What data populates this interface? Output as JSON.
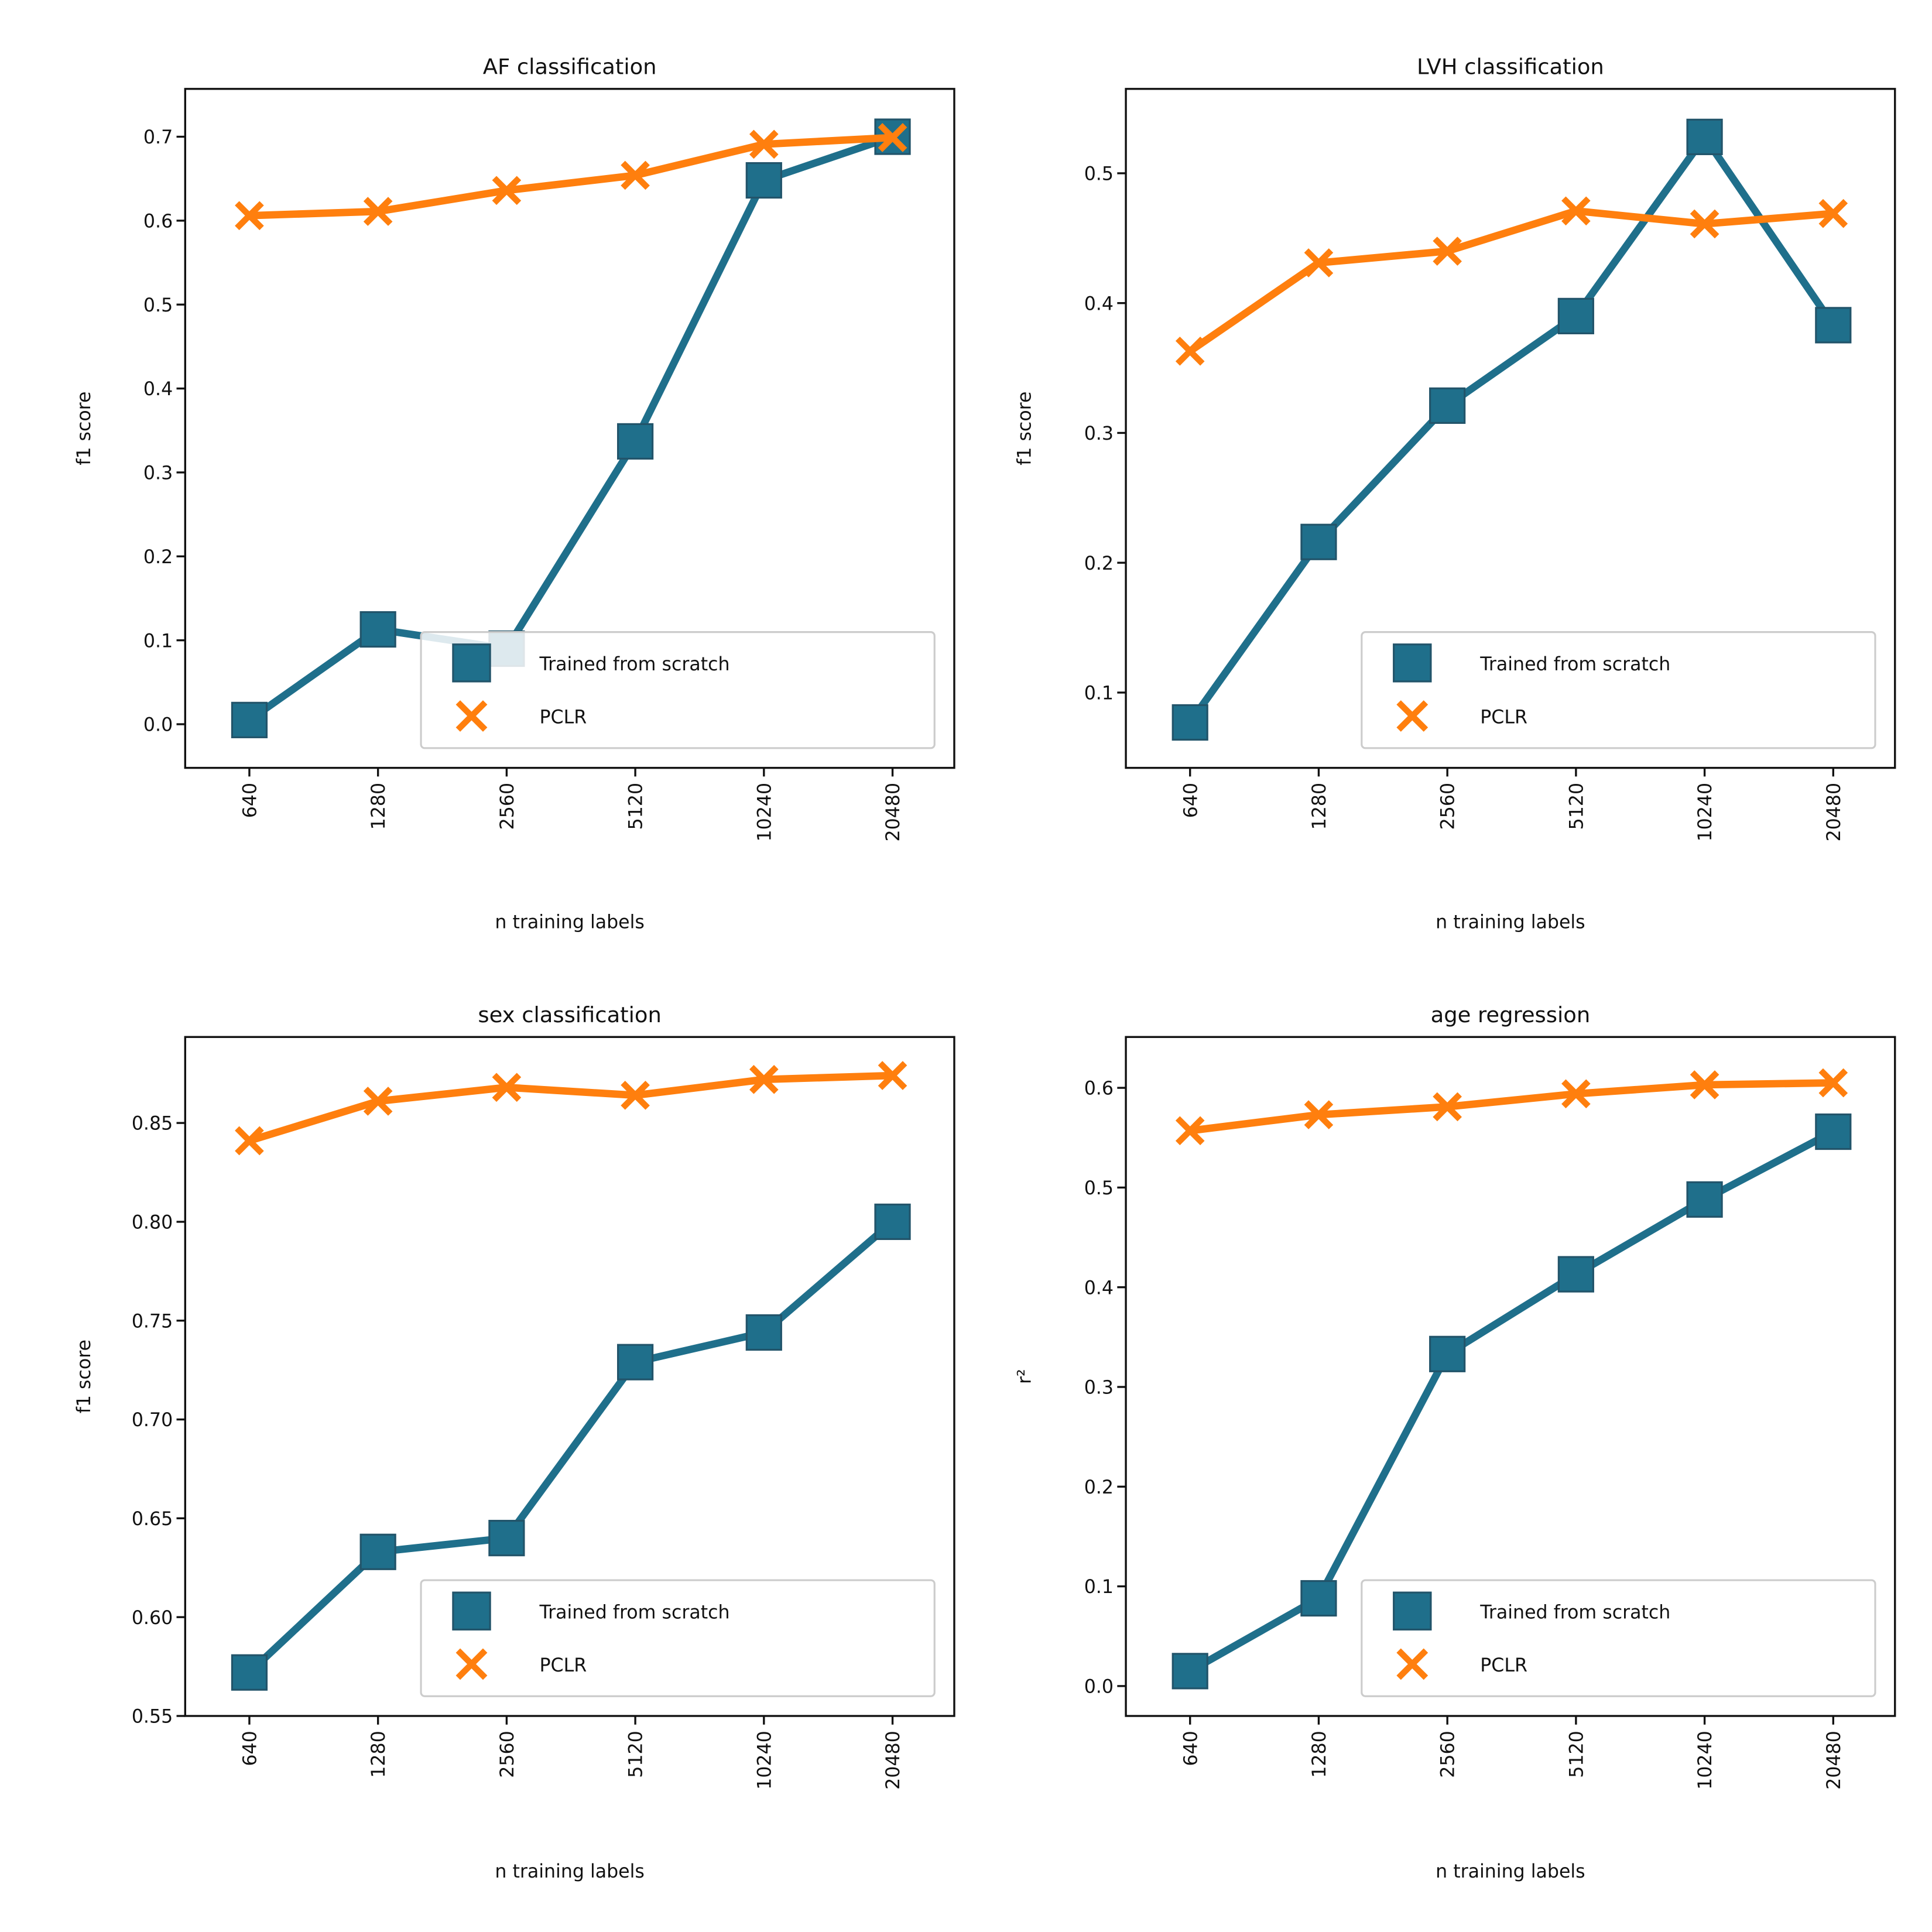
{
  "chart_data": [
    {
      "type": "line",
      "title": "AF classification",
      "xlabel": "n training labels",
      "ylabel": "f1 score",
      "categories": [
        "640",
        "1280",
        "2560",
        "5120",
        "10240",
        "20480"
      ],
      "yticks": [
        "0.0",
        "0.1",
        "0.2",
        "0.3",
        "0.4",
        "0.5",
        "0.6",
        "0.7"
      ],
      "ylim": [
        -0.052,
        0.757
      ],
      "legend_position": "lower-right",
      "series": [
        {
          "name": "Trained from scratch",
          "marker": "square",
          "color": "#1f6f8b",
          "values": [
            0.005,
            0.113,
            0.09,
            0.337,
            0.648,
            0.7
          ]
        },
        {
          "name": "PCLR",
          "marker": "x",
          "color": "#ff7f0e",
          "values": [
            0.606,
            0.611,
            0.636,
            0.654,
            0.691,
            0.699
          ]
        }
      ]
    },
    {
      "type": "line",
      "title": "LVH classification",
      "xlabel": "n training labels",
      "ylabel": "f1 score",
      "categories": [
        "640",
        "1280",
        "2560",
        "5120",
        "10240",
        "20480"
      ],
      "yticks": [
        "0.1",
        "0.2",
        "0.3",
        "0.4",
        "0.5"
      ],
      "ylim": [
        0.042,
        0.565
      ],
      "legend_position": "lower-right",
      "series": [
        {
          "name": "Trained from scratch",
          "marker": "square",
          "color": "#1f6f8b",
          "values": [
            0.077,
            0.216,
            0.321,
            0.39,
            0.528,
            0.383
          ]
        },
        {
          "name": "PCLR",
          "marker": "x",
          "color": "#ff7f0e",
          "values": [
            0.363,
            0.431,
            0.44,
            0.471,
            0.461,
            0.469
          ]
        }
      ]
    },
    {
      "type": "line",
      "title": "sex classification",
      "xlabel": "n training labels",
      "ylabel": "f1 score",
      "categories": [
        "640",
        "1280",
        "2560",
        "5120",
        "10240",
        "20480"
      ],
      "yticks": [
        "0.55",
        "0.60",
        "0.65",
        "0.70",
        "0.75",
        "0.80",
        "0.85"
      ],
      "ylim": [
        0.55,
        0.8935
      ],
      "legend_position": "lower-right",
      "series": [
        {
          "name": "Trained from scratch",
          "marker": "square",
          "color": "#1f6f8b",
          "values": [
            0.572,
            0.633,
            0.64,
            0.729,
            0.744,
            0.8
          ]
        },
        {
          "name": "PCLR",
          "marker": "x",
          "color": "#ff7f0e",
          "values": [
            0.841,
            0.861,
            0.868,
            0.864,
            0.872,
            0.874
          ]
        }
      ]
    },
    {
      "type": "line",
      "title": "age regression",
      "xlabel": "n training labels",
      "ylabel": "r²",
      "categories": [
        "640",
        "1280",
        "2560",
        "5120",
        "10240",
        "20480"
      ],
      "yticks": [
        "0.0",
        "0.1",
        "0.2",
        "0.3",
        "0.4",
        "0.5",
        "0.6"
      ],
      "ylim": [
        -0.03,
        0.651
      ],
      "legend_position": "lower-right",
      "series": [
        {
          "name": "Trained from scratch",
          "marker": "square",
          "color": "#1f6f8b",
          "values": [
            0.015,
            0.088,
            0.333,
            0.413,
            0.488,
            0.556
          ]
        },
        {
          "name": "PCLR",
          "marker": "x",
          "color": "#ff7f0e",
          "values": [
            0.557,
            0.573,
            0.581,
            0.594,
            0.603,
            0.605
          ]
        }
      ]
    }
  ]
}
